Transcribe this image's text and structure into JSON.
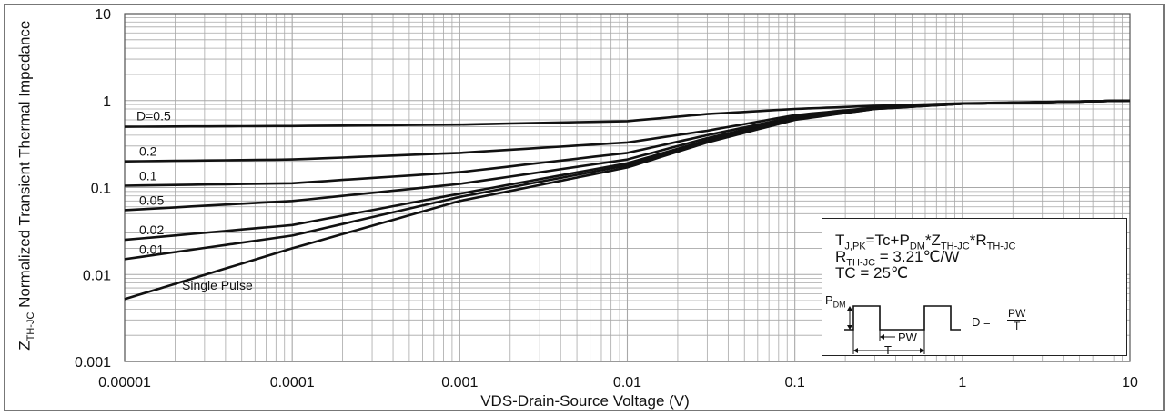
{
  "chart_data": {
    "type": "line",
    "x_scale": "log",
    "y_scale": "log",
    "xlim": [
      1e-05,
      10
    ],
    "ylim": [
      0.001,
      10
    ],
    "grid": true,
    "xlabel": "VDS-Drain-Source Voltage (V)",
    "ylabel": {
      "main": "Z",
      "sub": "TH-JC",
      "rest": " Normalized Transient Thermal Impedance"
    },
    "x_ticks": [
      {
        "v": 1e-05,
        "label": "0.00001"
      },
      {
        "v": 0.0001,
        "label": "0.0001"
      },
      {
        "v": 0.001,
        "label": "0.001"
      },
      {
        "v": 0.01,
        "label": "0.01"
      },
      {
        "v": 0.1,
        "label": "0.1"
      },
      {
        "v": 1,
        "label": "1"
      },
      {
        "v": 10,
        "label": "10"
      }
    ],
    "y_ticks": [
      {
        "v": 0.001,
        "label": "0.001"
      },
      {
        "v": 0.01,
        "label": "0.01"
      },
      {
        "v": 0.1,
        "label": "0.1"
      },
      {
        "v": 1,
        "label": "1"
      },
      {
        "v": 10,
        "label": "10"
      }
    ],
    "series": [
      {
        "name": "D=0.5",
        "points": [
          [
            1e-05,
            0.5
          ],
          [
            0.0001,
            0.51
          ],
          [
            0.001,
            0.53
          ],
          [
            0.01,
            0.58
          ],
          [
            0.03,
            0.7
          ],
          [
            0.1,
            0.8
          ],
          [
            0.3,
            0.87
          ],
          [
            1,
            0.93
          ],
          [
            10,
            1.0
          ]
        ]
      },
      {
        "name": "0.2",
        "points": [
          [
            1e-05,
            0.2
          ],
          [
            0.0001,
            0.21
          ],
          [
            0.001,
            0.25
          ],
          [
            0.01,
            0.33
          ],
          [
            0.03,
            0.45
          ],
          [
            0.1,
            0.68
          ],
          [
            0.3,
            0.83
          ],
          [
            1,
            0.92
          ],
          [
            10,
            1.0
          ]
        ]
      },
      {
        "name": "0.1",
        "points": [
          [
            1e-05,
            0.105
          ],
          [
            0.0001,
            0.112
          ],
          [
            0.001,
            0.15
          ],
          [
            0.01,
            0.25
          ],
          [
            0.03,
            0.4
          ],
          [
            0.1,
            0.65
          ],
          [
            0.3,
            0.82
          ],
          [
            1,
            0.92
          ],
          [
            10,
            1.0
          ]
        ]
      },
      {
        "name": "0.05",
        "points": [
          [
            1e-05,
            0.055
          ],
          [
            0.0001,
            0.07
          ],
          [
            0.001,
            0.11
          ],
          [
            0.01,
            0.21
          ],
          [
            0.03,
            0.37
          ],
          [
            0.1,
            0.63
          ],
          [
            0.3,
            0.81
          ],
          [
            1,
            0.92
          ],
          [
            10,
            1.0
          ]
        ]
      },
      {
        "name": "0.02",
        "points": [
          [
            1e-05,
            0.025
          ],
          [
            0.0001,
            0.037
          ],
          [
            0.001,
            0.085
          ],
          [
            0.01,
            0.19
          ],
          [
            0.03,
            0.35
          ],
          [
            0.1,
            0.62
          ],
          [
            0.3,
            0.81
          ],
          [
            1,
            0.92
          ],
          [
            10,
            1.0
          ]
        ]
      },
      {
        "name": "0.01",
        "points": [
          [
            1e-05,
            0.015
          ],
          [
            0.0001,
            0.028
          ],
          [
            0.001,
            0.078
          ],
          [
            0.01,
            0.18
          ],
          [
            0.03,
            0.34
          ],
          [
            0.1,
            0.61
          ],
          [
            0.3,
            0.8
          ],
          [
            1,
            0.92
          ],
          [
            10,
            1.0
          ]
        ]
      },
      {
        "name": "Single Pulse",
        "points": [
          [
            1e-05,
            0.0052
          ],
          [
            0.0001,
            0.02
          ],
          [
            0.001,
            0.07
          ],
          [
            0.01,
            0.17
          ],
          [
            0.03,
            0.33
          ],
          [
            0.1,
            0.6
          ],
          [
            0.3,
            0.8
          ],
          [
            1,
            0.92
          ],
          [
            10,
            1.0
          ]
        ]
      }
    ],
    "annotation": {
      "line1": {
        "a": "T",
        "a_sub": "J,PK",
        "b": "=Tc+P",
        "b_sub": "DM",
        "c": "*Z",
        "c_sub": "TH-JC",
        "d": "*R",
        "d_sub": "TH-JC"
      },
      "line2": {
        "a": "R",
        "a_sub": "TH-JC",
        "b": " = 3.21℃/W"
      },
      "line3": "TC = 25℃",
      "pdm": {
        "main": "P",
        "sub": "DM"
      },
      "pw": "PW",
      "t": "T",
      "d_eq": "D =",
      "d_num": "PW",
      "d_den": "T"
    },
    "colors": {
      "curve": "#111111",
      "grid": "#a8a8a8",
      "frame": "#777777"
    }
  }
}
